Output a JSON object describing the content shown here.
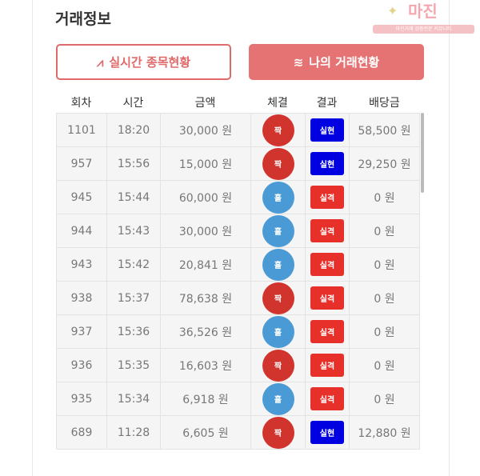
{
  "title": "거래정보",
  "watermark": {
    "name": "마진",
    "tagline": "마진거래 검증전문 커뮤니티"
  },
  "buttons": {
    "live": "실시간 종목현황",
    "mine": "나의 거래현황"
  },
  "headers": [
    "회차",
    "시간",
    "금액",
    "체결",
    "결과",
    "배당금"
  ],
  "colors": {
    "odd": "#d0342c",
    "even": "#4a9ad6",
    "win": "#0000e0",
    "lose": "#e8302a"
  },
  "rows": [
    {
      "round": "1101",
      "time": "18:20",
      "amount": "30,000 원",
      "pick": "짝",
      "result": "실현",
      "payout": "58,500 원"
    },
    {
      "round": "957",
      "time": "15:56",
      "amount": "15,000 원",
      "pick": "짝",
      "result": "실현",
      "payout": "29,250 원"
    },
    {
      "round": "945",
      "time": "15:44",
      "amount": "60,000 원",
      "pick": "홀",
      "result": "실격",
      "payout": "0 원"
    },
    {
      "round": "944",
      "time": "15:43",
      "amount": "30,000 원",
      "pick": "홀",
      "result": "실격",
      "payout": "0 원"
    },
    {
      "round": "943",
      "time": "15:42",
      "amount": "20,841 원",
      "pick": "홀",
      "result": "실격",
      "payout": "0 원"
    },
    {
      "round": "938",
      "time": "15:37",
      "amount": "78,638 원",
      "pick": "짝",
      "result": "실격",
      "payout": "0 원"
    },
    {
      "round": "937",
      "time": "15:36",
      "amount": "36,526 원",
      "pick": "홀",
      "result": "실격",
      "payout": "0 원"
    },
    {
      "round": "936",
      "time": "15:35",
      "amount": "16,603 원",
      "pick": "짝",
      "result": "실격",
      "payout": "0 원"
    },
    {
      "round": "935",
      "time": "15:34",
      "amount": "6,918 원",
      "pick": "홀",
      "result": "실격",
      "payout": "0 원"
    },
    {
      "round": "689",
      "time": "11:28",
      "amount": "6,605 원",
      "pick": "짝",
      "result": "실현",
      "payout": "12,880 원"
    }
  ]
}
